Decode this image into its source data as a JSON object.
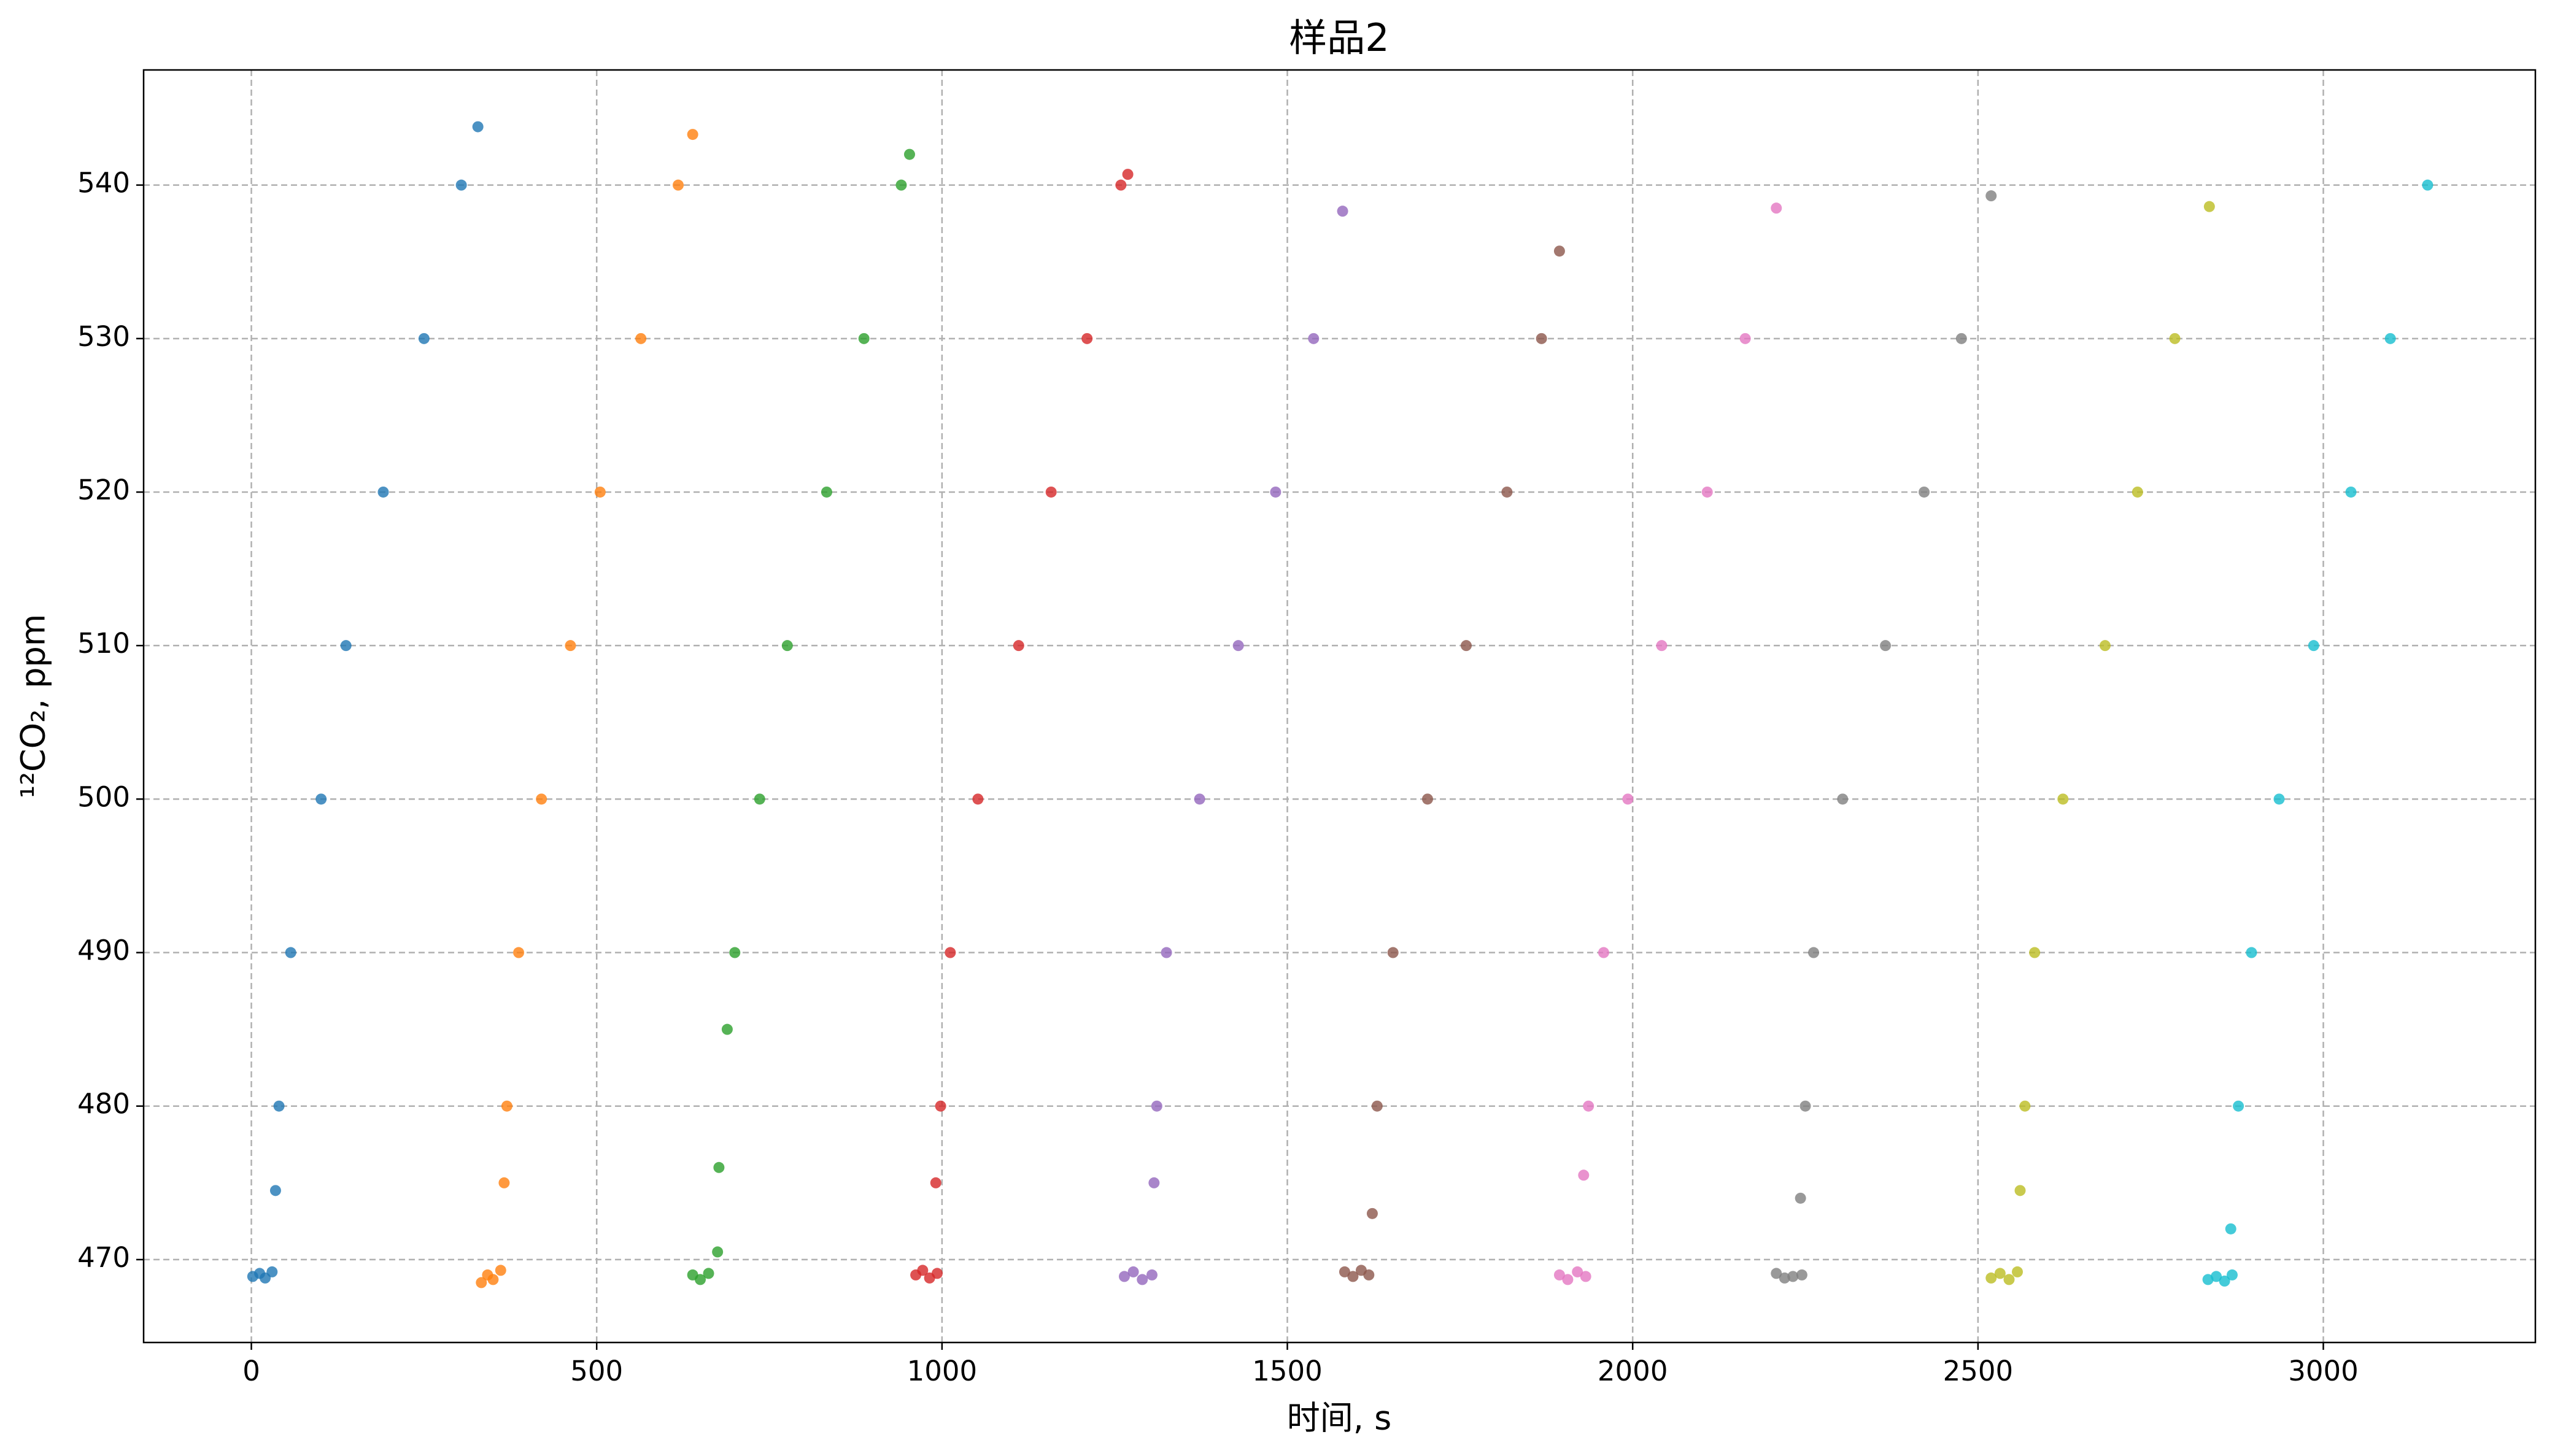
{
  "chart_data": {
    "type": "scatter",
    "title": "样品2",
    "xlabel": "时间, s",
    "ylabel": "¹²CO₂, ppm",
    "xlim": [
      -156,
      3307
    ],
    "ylim": [
      464.6,
      547.5
    ],
    "xticks": [
      0,
      500,
      1000,
      1500,
      2000,
      2500,
      3000
    ],
    "yticks": [
      470,
      480,
      490,
      500,
      510,
      520,
      530,
      540
    ],
    "grid": true,
    "series": [
      {
        "color": "#1f77b4",
        "x": [
          2,
          12,
          20,
          30,
          35,
          40,
          57,
          101,
          137,
          191,
          250,
          304,
          328
        ],
        "values": [
          468.9,
          469.1,
          468.8,
          469.2,
          474.5,
          480,
          490,
          500,
          510,
          520,
          530,
          540,
          543.8
        ]
      },
      {
        "color": "#ff7f0e",
        "x": [
          333,
          342,
          350,
          361,
          366,
          370,
          387,
          420,
          462,
          505,
          564,
          618,
          639
        ],
        "values": [
          468.5,
          469.0,
          468.7,
          469.3,
          475,
          480,
          490,
          500,
          510,
          520,
          530,
          540,
          543.3
        ]
      },
      {
        "color": "#2ca02c",
        "x": [
          639,
          650,
          662,
          675,
          677,
          689,
          700,
          736,
          776,
          833,
          887,
          941,
          953
        ],
        "values": [
          469.0,
          468.7,
          469.1,
          470.5,
          476,
          485,
          490,
          500,
          510,
          520,
          530,
          540,
          542.0
        ]
      },
      {
        "color": "#d62728",
        "x": [
          962,
          972,
          982,
          993,
          991,
          998,
          1012,
          1052,
          1111,
          1158,
          1210,
          1259,
          1269
        ],
        "values": [
          469.0,
          469.3,
          468.8,
          469.1,
          475,
          480,
          490,
          500,
          510,
          520,
          530,
          540,
          540.7
        ]
      },
      {
        "color": "#9467bd",
        "x": [
          1264,
          1277,
          1290,
          1304,
          1307,
          1311,
          1325,
          1373,
          1429,
          1483,
          1538,
          1580
        ],
        "values": [
          468.9,
          469.2,
          468.7,
          469.0,
          475,
          480,
          490,
          500,
          510,
          520,
          530,
          538.3
        ]
      },
      {
        "color": "#8c564b",
        "x": [
          1583,
          1595,
          1607,
          1618,
          1623,
          1630,
          1653,
          1703,
          1759,
          1818,
          1868,
          1894
        ],
        "values": [
          469.2,
          468.9,
          469.3,
          469.0,
          473,
          480,
          490,
          500,
          510,
          520,
          530,
          535.7
        ]
      },
      {
        "color": "#e377c2",
        "x": [
          1894,
          1906,
          1920,
          1932,
          1929,
          1936,
          1958,
          1993,
          2042,
          2108,
          2163,
          2208
        ],
        "values": [
          469.0,
          468.7,
          469.2,
          468.9,
          475.5,
          480,
          490,
          500,
          510,
          520,
          530,
          538.5
        ]
      },
      {
        "color": "#7f7f7f",
        "x": [
          2208,
          2220,
          2232,
          2245,
          2243,
          2250,
          2262,
          2304,
          2366,
          2422,
          2476,
          2519
        ],
        "values": [
          469.1,
          468.8,
          468.9,
          469.0,
          474,
          480,
          490,
          500,
          510,
          520,
          530,
          539.3
        ]
      },
      {
        "color": "#bcbd22",
        "x": [
          2519,
          2532,
          2545,
          2557,
          2561,
          2568,
          2582,
          2623,
          2684,
          2731,
          2785,
          2835
        ],
        "values": [
          468.8,
          469.1,
          468.7,
          469.2,
          474.5,
          480,
          490,
          500,
          510,
          520,
          530,
          538.6
        ]
      },
      {
        "color": "#17becf",
        "x": [
          2833,
          2845,
          2857,
          2868,
          2866,
          2877,
          2896,
          2936,
          2986,
          3040,
          3097,
          3151
        ],
        "values": [
          468.7,
          468.9,
          468.6,
          469.0,
          472,
          480,
          490,
          500,
          510,
          520,
          530,
          540.0
        ]
      }
    ]
  }
}
